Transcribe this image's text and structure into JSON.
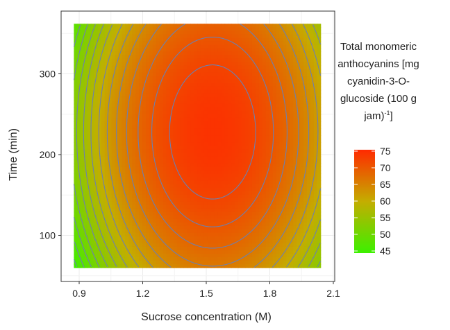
{
  "chart_data": {
    "type": "heatmap",
    "subtype": "contour response surface",
    "xlabel": "Sucrose concentration (M)",
    "ylabel": "Time (min)",
    "xlim": [
      0.8,
      2.1
    ],
    "ylim": [
      20,
      390
    ],
    "data_extent": {
      "x": [
        0.875,
        2.04
      ],
      "y": [
        60,
        362
      ]
    },
    "x_ticks": [
      "0.9",
      "1.2",
      "1.5",
      "1.8",
      "2.1"
    ],
    "x_tick_values": [
      0.9,
      1.2,
      1.5,
      1.8,
      2.1
    ],
    "y_ticks": [
      "100",
      "200",
      "300"
    ],
    "y_tick_values": [
      100,
      200,
      300
    ],
    "grid": true,
    "surface": {
      "form": "quadratic",
      "peak": {
        "x": 1.53,
        "y": 228,
        "z": 74
      },
      "x_curvature": 48.5,
      "y_curvature": 0.00029
    },
    "contour_interval": 2,
    "contour_color": "#6b7fb0",
    "legend": {
      "title_lines": [
        "Total monomeric",
        "anthocyanins [mg",
        "cyanidin-3-O-",
        "glucoside (100 g",
        "jam)"
      ],
      "title_superscript": "-1",
      "title_tail": "]",
      "placement": "right",
      "range": [
        45,
        75
      ],
      "ticks": [
        "75",
        "70",
        "65",
        "60",
        "55",
        "50",
        "45"
      ],
      "tick_values": [
        75,
        70,
        65,
        60,
        55,
        50,
        45
      ],
      "colors": [
        "#3cf000",
        "#c4ad00",
        "#ff2a00"
      ]
    }
  }
}
